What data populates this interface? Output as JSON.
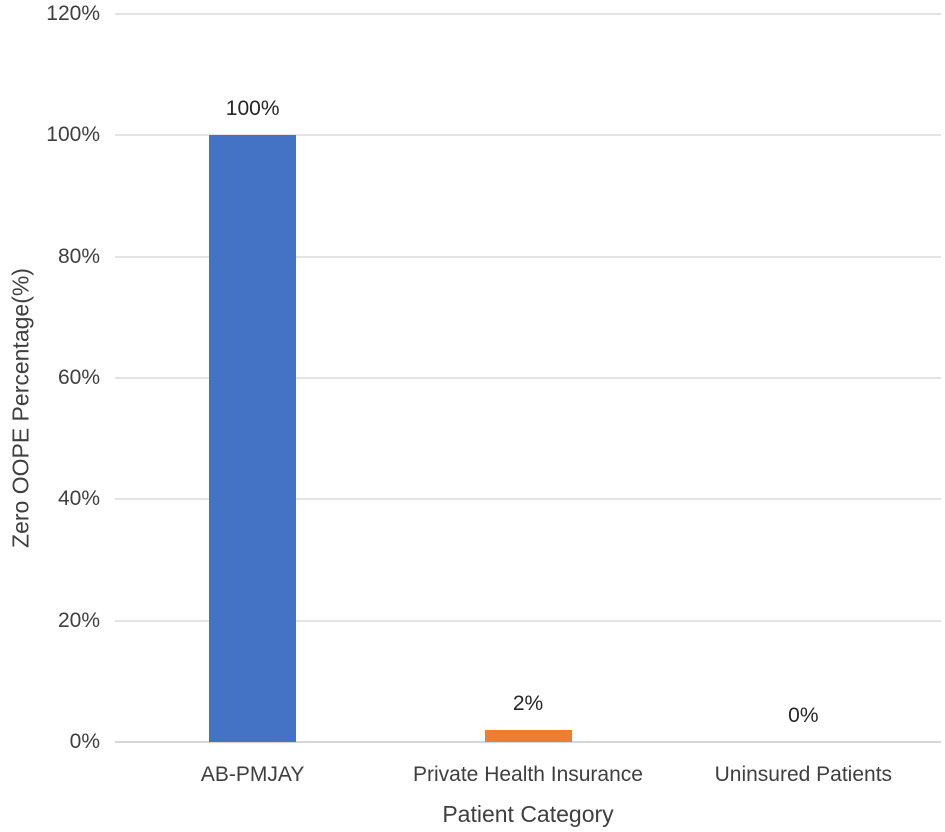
{
  "chart_data": {
    "type": "bar",
    "title": "",
    "xlabel": "Patient Category",
    "ylabel": "Zero OOPE Percentage(%)",
    "categories": [
      "AB-PMJAY",
      "Private Health Insurance",
      "Uninsured Patients"
    ],
    "values": [
      100,
      2,
      0
    ],
    "data_labels": [
      "100%",
      "2%",
      "0%"
    ],
    "bar_colors": [
      "#4472C4",
      "#ED7D31",
      "#A5A5A5"
    ],
    "ylim": [
      0,
      120
    ],
    "yticks": [
      0,
      20,
      40,
      60,
      80,
      100,
      120
    ],
    "ytick_labels": [
      "0%",
      "20%",
      "40%",
      "60%",
      "80%",
      "100%",
      "120%"
    ],
    "grid": "horizontal",
    "legend": "none",
    "colors": {
      "text": "#3f3f3f",
      "gridline": "#e4e4e4",
      "axis_baseline": "#d6d6d6",
      "series_blue": "#4472C4",
      "series_orange": "#ED7D31"
    }
  }
}
